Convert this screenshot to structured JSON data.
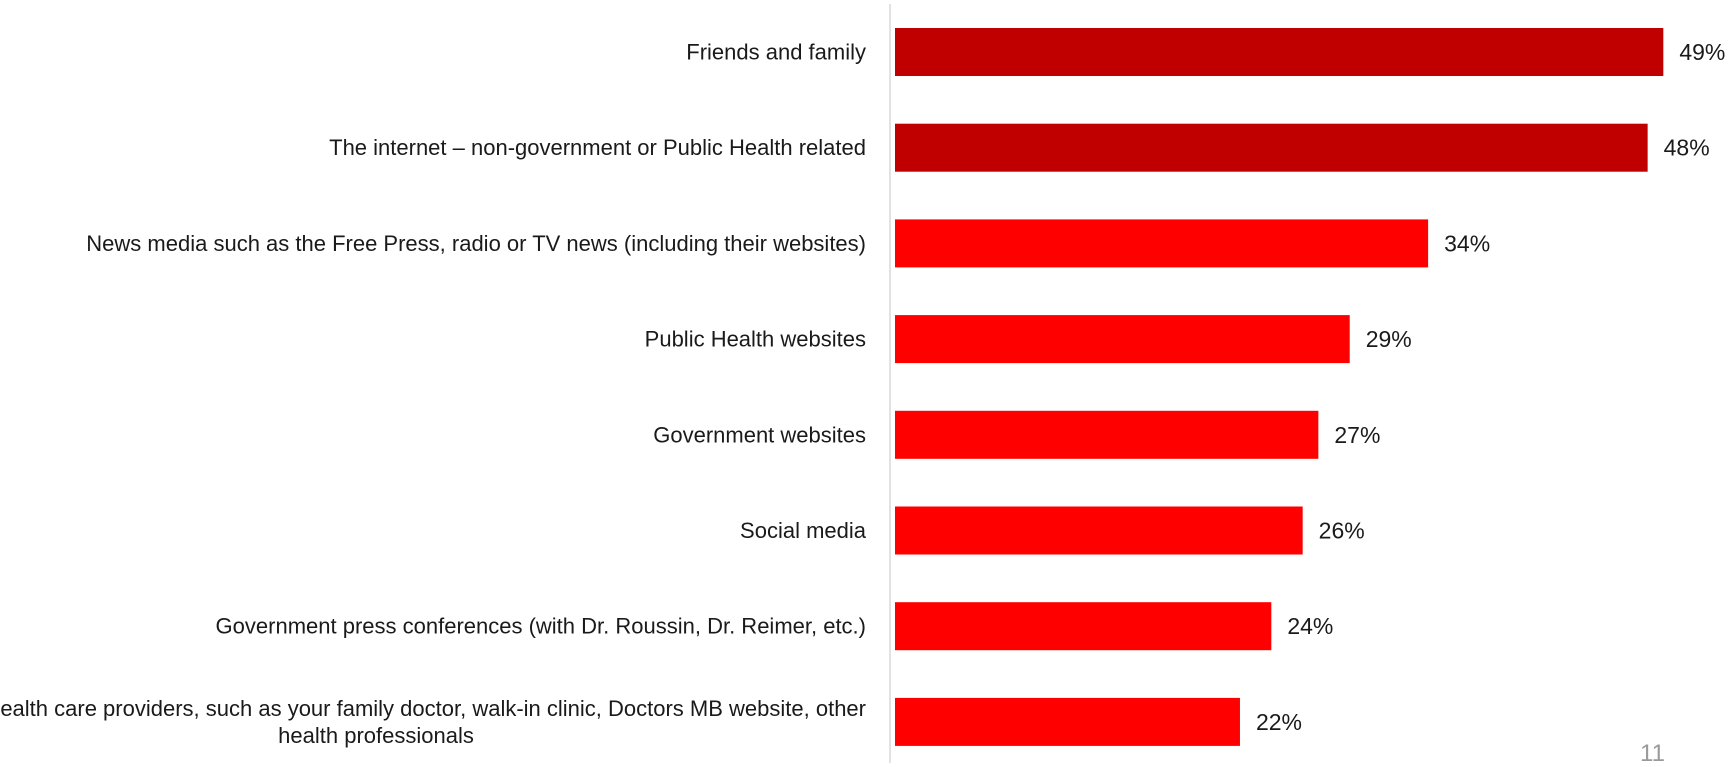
{
  "page_number": "11",
  "colors": {
    "highlight": "#C00000",
    "bar": "#FF0000",
    "axis": "#D9D9D9",
    "text": "#1A1A1A"
  },
  "chart_data": {
    "type": "bar",
    "orientation": "horizontal",
    "title": "",
    "xlabel": "",
    "ylabel": "",
    "grid": false,
    "legend": "none",
    "xlim": [
      0,
      50
    ],
    "value_suffix": "%",
    "categories": [
      [
        "Friends and family"
      ],
      [
        "The internet – non-government or Public Health related"
      ],
      [
        "News media such as the Free Press, radio or TV news (including their websites)"
      ],
      [
        "Public Health websites"
      ],
      [
        "Government websites"
      ],
      [
        "Social media"
      ],
      [
        "Government press conferences (with Dr. Roussin, Dr. Reimer, etc.)"
      ],
      [
        "Health care providers, such as your family doctor, walk-in clinic, Doctors MB website, other",
        "health professionals"
      ]
    ],
    "values": [
      49,
      48,
      34,
      29,
      27,
      26,
      24,
      22
    ],
    "value_labels": [
      "49%",
      "48%",
      "34%",
      "29%",
      "27%",
      "26%",
      "24%",
      "22%"
    ],
    "highlighted": [
      true,
      true,
      false,
      false,
      false,
      false,
      false,
      false
    ]
  }
}
